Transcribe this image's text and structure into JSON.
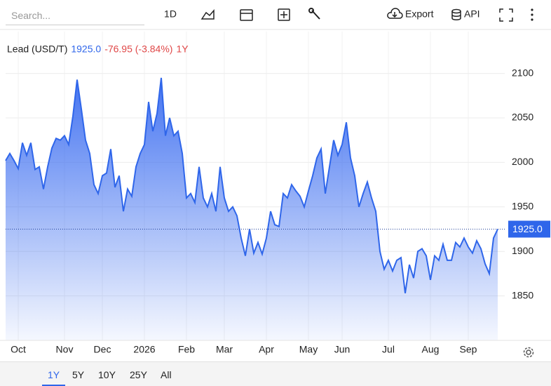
{
  "toolbar": {
    "search_placeholder": "Search...",
    "interval": "1D",
    "export": "Export",
    "api": "API"
  },
  "ranges": [
    "1Y",
    "5Y",
    "10Y",
    "25Y",
    "All"
  ],
  "active_range": 0,
  "chart_data": {
    "type": "area",
    "header": {
      "name": "Lead (USD/T)",
      "price": "1925.0",
      "change": "-76.95 (-3.84%)",
      "period": "1Y"
    },
    "series": [
      {
        "name": "Lead (USD/T)",
        "color": "#2f66ea",
        "values": [
          2002,
          2010,
          2002,
          1993,
          2022,
          2008,
          2022,
          1992,
          1995,
          1970,
          1995,
          2016,
          2027,
          2025,
          2030,
          2020,
          2052,
          2093,
          2060,
          2025,
          2010,
          1975,
          1965,
          1985,
          1988,
          2015,
          1972,
          1985,
          1945,
          1970,
          1962,
          1995,
          2010,
          2020,
          2068,
          2035,
          2055,
          2095,
          2030,
          2050,
          2030,
          2035,
          2010,
          1960,
          1965,
          1955,
          1995,
          1960,
          1950,
          1965,
          1945,
          1995,
          1960,
          1945,
          1950,
          1940,
          1915,
          1895,
          1925,
          1898,
          1910,
          1897,
          1915,
          1945,
          1930,
          1928,
          1965,
          1960,
          1975,
          1968,
          1962,
          1950,
          1968,
          1985,
          2005,
          2015,
          1965,
          1995,
          2025,
          2008,
          2020,
          2045,
          2005,
          1985,
          1950,
          1965,
          1978,
          1960,
          1945,
          1900,
          1880,
          1890,
          1878,
          1890,
          1893,
          1853,
          1885,
          1870,
          1900,
          1903,
          1895,
          1868,
          1895,
          1890,
          1908,
          1890,
          1890,
          1910,
          1905,
          1915,
          1905,
          1898,
          1912,
          1903,
          1886,
          1875,
          1915,
          1925
        ]
      }
    ],
    "xlim": [
      0,
      117
    ],
    "xticks": [
      {
        "value": 3,
        "label": "Oct"
      },
      {
        "value": 14,
        "label": "Nov"
      },
      {
        "value": 23,
        "label": "Dec"
      },
      {
        "value": 33,
        "label": "2026"
      },
      {
        "value": 43,
        "label": "Feb"
      },
      {
        "value": 52,
        "label": "Mar"
      },
      {
        "value": 62,
        "label": "Apr"
      },
      {
        "value": 72,
        "label": "May"
      },
      {
        "value": 80,
        "label": "Jun"
      },
      {
        "value": 91,
        "label": "Jul"
      },
      {
        "value": 101,
        "label": "Aug"
      },
      {
        "value": 110,
        "label": "Sep"
      }
    ],
    "ylim": [
      1800,
      2147
    ],
    "yticks": [
      1850,
      1900,
      1950,
      2000,
      2050,
      2100
    ],
    "grid": true
  }
}
